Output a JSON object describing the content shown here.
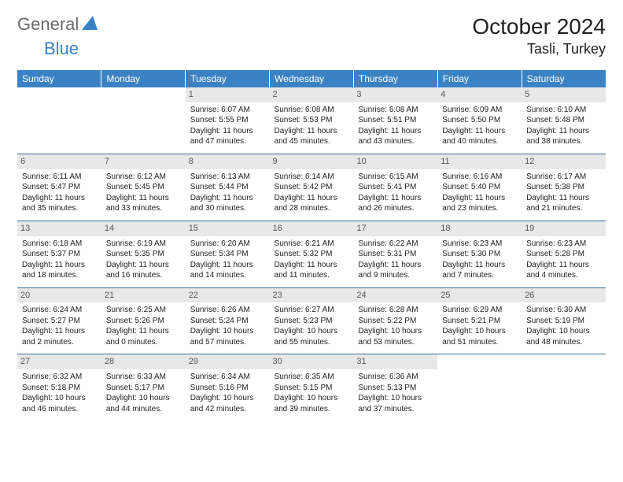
{
  "brand": {
    "part1": "General",
    "part2": "Blue"
  },
  "title": "October 2024",
  "location": "Tasli, Turkey",
  "colors": {
    "header_bg": "#3b82c4",
    "header_text": "#ffffff",
    "daynum_bg": "#e8e8e8",
    "daynum_text": "#555555",
    "row_border": "#3b6fa0",
    "background": "#ffffff"
  },
  "weekdays": [
    "Sunday",
    "Monday",
    "Tuesday",
    "Wednesday",
    "Thursday",
    "Friday",
    "Saturday"
  ],
  "weeks": [
    [
      null,
      null,
      {
        "n": "1",
        "sr": "Sunrise: 6:07 AM",
        "ss": "Sunset: 5:55 PM",
        "d1": "Daylight: 11 hours",
        "d2": "and 47 minutes."
      },
      {
        "n": "2",
        "sr": "Sunrise: 6:08 AM",
        "ss": "Sunset: 5:53 PM",
        "d1": "Daylight: 11 hours",
        "d2": "and 45 minutes."
      },
      {
        "n": "3",
        "sr": "Sunrise: 6:08 AM",
        "ss": "Sunset: 5:51 PM",
        "d1": "Daylight: 11 hours",
        "d2": "and 43 minutes."
      },
      {
        "n": "4",
        "sr": "Sunrise: 6:09 AM",
        "ss": "Sunset: 5:50 PM",
        "d1": "Daylight: 11 hours",
        "d2": "and 40 minutes."
      },
      {
        "n": "5",
        "sr": "Sunrise: 6:10 AM",
        "ss": "Sunset: 5:48 PM",
        "d1": "Daylight: 11 hours",
        "d2": "and 38 minutes."
      }
    ],
    [
      {
        "n": "6",
        "sr": "Sunrise: 6:11 AM",
        "ss": "Sunset: 5:47 PM",
        "d1": "Daylight: 11 hours",
        "d2": "and 35 minutes."
      },
      {
        "n": "7",
        "sr": "Sunrise: 6:12 AM",
        "ss": "Sunset: 5:45 PM",
        "d1": "Daylight: 11 hours",
        "d2": "and 33 minutes."
      },
      {
        "n": "8",
        "sr": "Sunrise: 6:13 AM",
        "ss": "Sunset: 5:44 PM",
        "d1": "Daylight: 11 hours",
        "d2": "and 30 minutes."
      },
      {
        "n": "9",
        "sr": "Sunrise: 6:14 AM",
        "ss": "Sunset: 5:42 PM",
        "d1": "Daylight: 11 hours",
        "d2": "and 28 minutes."
      },
      {
        "n": "10",
        "sr": "Sunrise: 6:15 AM",
        "ss": "Sunset: 5:41 PM",
        "d1": "Daylight: 11 hours",
        "d2": "and 26 minutes."
      },
      {
        "n": "11",
        "sr": "Sunrise: 6:16 AM",
        "ss": "Sunset: 5:40 PM",
        "d1": "Daylight: 11 hours",
        "d2": "and 23 minutes."
      },
      {
        "n": "12",
        "sr": "Sunrise: 6:17 AM",
        "ss": "Sunset: 5:38 PM",
        "d1": "Daylight: 11 hours",
        "d2": "and 21 minutes."
      }
    ],
    [
      {
        "n": "13",
        "sr": "Sunrise: 6:18 AM",
        "ss": "Sunset: 5:37 PM",
        "d1": "Daylight: 11 hours",
        "d2": "and 18 minutes."
      },
      {
        "n": "14",
        "sr": "Sunrise: 6:19 AM",
        "ss": "Sunset: 5:35 PM",
        "d1": "Daylight: 11 hours",
        "d2": "and 16 minutes."
      },
      {
        "n": "15",
        "sr": "Sunrise: 6:20 AM",
        "ss": "Sunset: 5:34 PM",
        "d1": "Daylight: 11 hours",
        "d2": "and 14 minutes."
      },
      {
        "n": "16",
        "sr": "Sunrise: 6:21 AM",
        "ss": "Sunset: 5:32 PM",
        "d1": "Daylight: 11 hours",
        "d2": "and 11 minutes."
      },
      {
        "n": "17",
        "sr": "Sunrise: 6:22 AM",
        "ss": "Sunset: 5:31 PM",
        "d1": "Daylight: 11 hours",
        "d2": "and 9 minutes."
      },
      {
        "n": "18",
        "sr": "Sunrise: 6:23 AM",
        "ss": "Sunset: 5:30 PM",
        "d1": "Daylight: 11 hours",
        "d2": "and 7 minutes."
      },
      {
        "n": "19",
        "sr": "Sunrise: 6:23 AM",
        "ss": "Sunset: 5:28 PM",
        "d1": "Daylight: 11 hours",
        "d2": "and 4 minutes."
      }
    ],
    [
      {
        "n": "20",
        "sr": "Sunrise: 6:24 AM",
        "ss": "Sunset: 5:27 PM",
        "d1": "Daylight: 11 hours",
        "d2": "and 2 minutes."
      },
      {
        "n": "21",
        "sr": "Sunrise: 6:25 AM",
        "ss": "Sunset: 5:26 PM",
        "d1": "Daylight: 11 hours",
        "d2": "and 0 minutes."
      },
      {
        "n": "22",
        "sr": "Sunrise: 6:26 AM",
        "ss": "Sunset: 5:24 PM",
        "d1": "Daylight: 10 hours",
        "d2": "and 57 minutes."
      },
      {
        "n": "23",
        "sr": "Sunrise: 6:27 AM",
        "ss": "Sunset: 5:23 PM",
        "d1": "Daylight: 10 hours",
        "d2": "and 55 minutes."
      },
      {
        "n": "24",
        "sr": "Sunrise: 6:28 AM",
        "ss": "Sunset: 5:22 PM",
        "d1": "Daylight: 10 hours",
        "d2": "and 53 minutes."
      },
      {
        "n": "25",
        "sr": "Sunrise: 6:29 AM",
        "ss": "Sunset: 5:21 PM",
        "d1": "Daylight: 10 hours",
        "d2": "and 51 minutes."
      },
      {
        "n": "26",
        "sr": "Sunrise: 6:30 AM",
        "ss": "Sunset: 5:19 PM",
        "d1": "Daylight: 10 hours",
        "d2": "and 48 minutes."
      }
    ],
    [
      {
        "n": "27",
        "sr": "Sunrise: 6:32 AM",
        "ss": "Sunset: 5:18 PM",
        "d1": "Daylight: 10 hours",
        "d2": "and 46 minutes."
      },
      {
        "n": "28",
        "sr": "Sunrise: 6:33 AM",
        "ss": "Sunset: 5:17 PM",
        "d1": "Daylight: 10 hours",
        "d2": "and 44 minutes."
      },
      {
        "n": "29",
        "sr": "Sunrise: 6:34 AM",
        "ss": "Sunset: 5:16 PM",
        "d1": "Daylight: 10 hours",
        "d2": "and 42 minutes."
      },
      {
        "n": "30",
        "sr": "Sunrise: 6:35 AM",
        "ss": "Sunset: 5:15 PM",
        "d1": "Daylight: 10 hours",
        "d2": "and 39 minutes."
      },
      {
        "n": "31",
        "sr": "Sunrise: 6:36 AM",
        "ss": "Sunset: 5:13 PM",
        "d1": "Daylight: 10 hours",
        "d2": "and 37 minutes."
      },
      null,
      null
    ]
  ]
}
